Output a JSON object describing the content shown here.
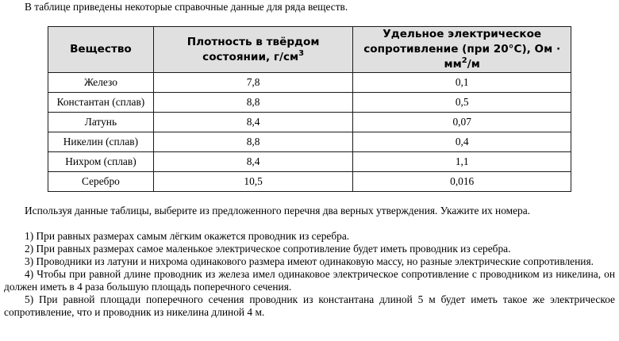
{
  "intro": "В таблице приведены некоторые справочные данные для ряда веществ.",
  "table": {
    "headers": [
      {
        "text": "Вещество",
        "sup": "",
        "tail": ""
      },
      {
        "text": "Плотность в твёрдом состоянии, г/см",
        "sup": "3",
        "tail": ""
      },
      {
        "text": "Удельное электрическое сопротивление (при 20°C), Ом · мм",
        "sup": "2",
        "tail": "/м"
      }
    ],
    "rows": [
      [
        "Железо",
        "7,8",
        "0,1"
      ],
      [
        "Константан (сплав)",
        "8,8",
        "0,5"
      ],
      [
        "Латунь",
        "8,4",
        "0,07"
      ],
      [
        "Никелин (сплав)",
        "8,8",
        "0,4"
      ],
      [
        "Нихром (сплав)",
        "8,4",
        "1,1"
      ],
      [
        "Серебро",
        "10,5",
        "0,016"
      ]
    ]
  },
  "instruction": "Используя данные таблицы, выберите из предложенного перечня два верных утверждения. Укажите их номера.",
  "statements": [
    "1) При равных размерах самым лёгким окажется проводник из серебра.",
    "2) При равных размерах самое маленькое электрическое сопротивление будет иметь проводник из серебра.",
    "3) Проводники из латуни и нихрома одинакового размера имеют одинаковую массу, но разные электрические сопротивления.",
    "4) Чтобы при равной длине проводник из железа имел одинаковое электрическое сопротивление с проводником из никелина, он должен иметь в 4 раза большую площадь поперечного сечения.",
    "5) При равной площади поперечного сечения проводник из константана длиной 5 м будет иметь такое же электрическое сопротивление, что и проводник из никелина длиной 4 м."
  ]
}
